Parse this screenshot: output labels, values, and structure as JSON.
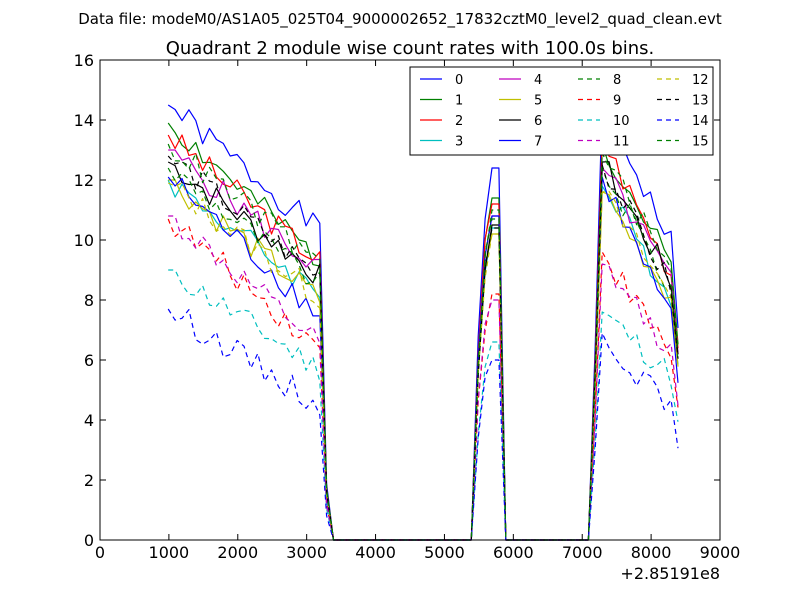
{
  "suptitle": "Data file: modeM0/AS1A05_025T04_9000002652_17832cztM0_level2_quad_clean.evt",
  "chart_data": {
    "type": "line",
    "title": "Quadrant 2 module wise count rates with 100.0s bins.",
    "xlabel": "",
    "ylabel": "",
    "xlim": [
      0,
      9000
    ],
    "ylim": [
      0,
      16
    ],
    "x_offset_label": "+2.85191e8",
    "xticks": [
      0,
      1000,
      2000,
      3000,
      4000,
      5000,
      6000,
      7000,
      8000,
      9000
    ],
    "xtick_labels": [
      "0",
      "1000",
      "2000",
      "3000",
      "4000",
      "5000",
      "6000",
      "7000",
      "8000",
      "9000"
    ],
    "yticks": [
      0,
      2,
      4,
      6,
      8,
      10,
      12,
      14,
      16
    ],
    "ytick_labels": [
      "0",
      "2",
      "4",
      "6",
      "8",
      "10",
      "12",
      "14",
      "16"
    ],
    "grid": false,
    "legend_position": "top-right",
    "legend_columns": 4,
    "segments": [
      {
        "x_start": 990,
        "x_step": 100,
        "count": 25
      },
      {
        "x_start": 5390,
        "x_step": 100,
        "count": 6
      },
      {
        "x_start": 7090,
        "x_step": 100,
        "count": 14
      }
    ],
    "gaps": [
      [
        3490,
        5390
      ],
      [
        5890,
        7090
      ]
    ],
    "series": [
      {
        "name": "0",
        "color": "#0000ff",
        "dashed": false,
        "first": 14.5,
        "drop": 4.2,
        "base": 10.4,
        "peak1": 12.4,
        "peak2": 14.6,
        "seed": 1
      },
      {
        "name": "1",
        "color": "#008000",
        "dashed": false,
        "first": 13.9,
        "drop": 4.6,
        "base": 9.6,
        "peak1": 11.4,
        "peak2": 13.2,
        "seed": 2
      },
      {
        "name": "2",
        "color": "#ff0000",
        "dashed": false,
        "first": 13.5,
        "drop": 4.2,
        "base": 9.4,
        "peak1": 11.2,
        "peak2": 13.4,
        "seed": 3
      },
      {
        "name": "3",
        "color": "#00bfbf",
        "dashed": false,
        "first": 12.0,
        "drop": 3.8,
        "base": 8.6,
        "peak1": 10.4,
        "peak2": 11.8,
        "seed": 4
      },
      {
        "name": "4",
        "color": "#bf00bf",
        "dashed": false,
        "first": 13.0,
        "drop": 4.0,
        "base": 9.1,
        "peak1": 10.8,
        "peak2": 12.4,
        "seed": 5
      },
      {
        "name": "5",
        "color": "#bfbf00",
        "dashed": false,
        "first": 12.0,
        "drop": 4.0,
        "base": 8.5,
        "peak1": 10.2,
        "peak2": 11.6,
        "seed": 6
      },
      {
        "name": "6",
        "color": "#000000",
        "dashed": false,
        "first": 12.6,
        "drop": 3.8,
        "base": 9.1,
        "peak1": 10.5,
        "peak2": 12.6,
        "seed": 7
      },
      {
        "name": "7",
        "color": "#0000ff",
        "dashed": false,
        "first": 12.1,
        "drop": 4.6,
        "base": 7.7,
        "peak1": 10.8,
        "peak2": 12.1,
        "seed": 8
      },
      {
        "name": "8",
        "color": "#008000",
        "dashed": true,
        "first": 12.4,
        "drop": 3.9,
        "base": 8.8,
        "peak1": 10.7,
        "peak2": 12.4,
        "seed": 9
      },
      {
        "name": "9",
        "color": "#ff0000",
        "dashed": true,
        "first": 10.7,
        "drop": 4.3,
        "base": 6.5,
        "peak1": 8.2,
        "peak2": 9.6,
        "seed": 10
      },
      {
        "name": "10",
        "color": "#00bfbf",
        "dashed": true,
        "first": 9.0,
        "drop": 3.3,
        "base": 5.8,
        "peak1": 6.6,
        "peak2": 7.6,
        "seed": 11
      },
      {
        "name": "11",
        "color": "#bf00bf",
        "dashed": true,
        "first": 10.8,
        "drop": 4.3,
        "base": 6.6,
        "peak1": 8.0,
        "peak2": 9.2,
        "seed": 12
      },
      {
        "name": "12",
        "color": "#bfbf00",
        "dashed": true,
        "first": 11.9,
        "drop": 3.8,
        "base": 8.5,
        "peak1": 10.2,
        "peak2": 11.6,
        "seed": 13
      },
      {
        "name": "13",
        "color": "#000000",
        "dashed": true,
        "first": 12.8,
        "drop": 4.0,
        "base": 8.9,
        "peak1": 10.4,
        "peak2": 12.5,
        "seed": 14
      },
      {
        "name": "14",
        "color": "#0000ff",
        "dashed": true,
        "first": 7.7,
        "drop": 3.2,
        "base": 4.5,
        "peak1": 6.0,
        "peak2": 6.9,
        "seed": 15
      },
      {
        "name": "15",
        "color": "#008000",
        "dashed": true,
        "first": 13.2,
        "drop": 4.0,
        "base": 9.4,
        "peak1": 11.0,
        "peak2": 12.9,
        "seed": 16
      }
    ]
  }
}
